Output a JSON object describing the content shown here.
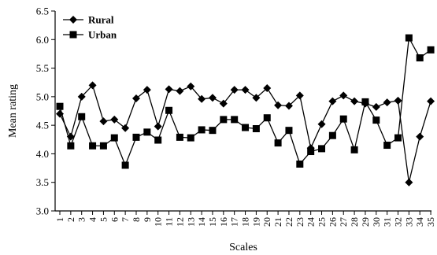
{
  "chart_data": {
    "type": "line",
    "xlabel": "Scales",
    "ylabel": "Mean rating",
    "ylim": [
      3.0,
      6.5
    ],
    "yticks": [
      "3.0",
      "3.5",
      "4.0",
      "4.5",
      "5.0",
      "5.5",
      "6.0",
      "6.5"
    ],
    "x": [
      "1",
      "2",
      "3",
      "4",
      "5",
      "6",
      "7",
      "8",
      "9",
      "10",
      "11",
      "12",
      "13",
      "14",
      "15",
      "16",
      "17",
      "18",
      "19",
      "20",
      "21",
      "22",
      "23",
      "24",
      "25",
      "26",
      "27",
      "28",
      "29",
      "30",
      "31",
      "32",
      "33",
      "34",
      "35"
    ],
    "legend_position": "top-left",
    "grid": false,
    "series": [
      {
        "name": "Rural",
        "marker": "diamond",
        "values": [
          4.7,
          4.3,
          5.0,
          5.2,
          4.57,
          4.6,
          4.45,
          4.97,
          5.12,
          4.48,
          5.13,
          5.1,
          5.18,
          4.96,
          4.98,
          4.88,
          5.12,
          5.12,
          4.98,
          5.15,
          4.85,
          4.84,
          5.02,
          4.1,
          4.52,
          4.92,
          5.02,
          4.92,
          4.88,
          4.82,
          4.9,
          4.93,
          3.5,
          4.3,
          4.92
        ]
      },
      {
        "name": "Urban",
        "marker": "square",
        "values": [
          4.83,
          4.14,
          4.65,
          4.14,
          4.14,
          4.28,
          3.8,
          4.29,
          4.38,
          4.24,
          4.76,
          4.29,
          4.28,
          4.42,
          4.41,
          4.6,
          4.6,
          4.46,
          4.44,
          4.63,
          4.19,
          4.41,
          3.82,
          4.04,
          4.09,
          4.32,
          4.61,
          4.07,
          4.91,
          4.59,
          4.15,
          4.28,
          6.03,
          5.68,
          5.82
        ]
      }
    ]
  }
}
